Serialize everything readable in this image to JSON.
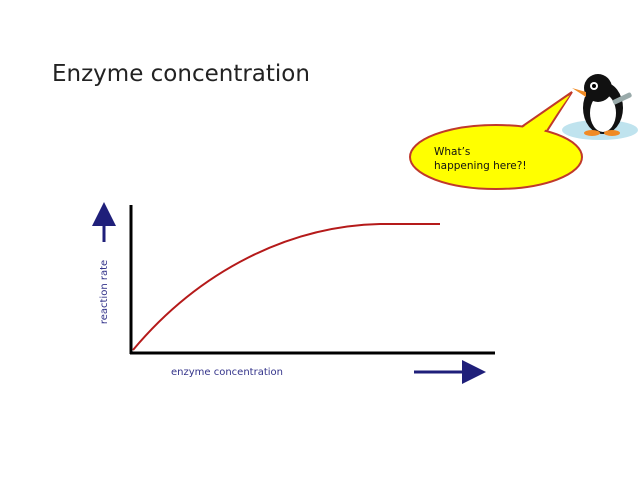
{
  "title": "Enzyme concentration",
  "graph": {
    "y_axis_label": "reaction rate",
    "x_axis_label": "enzyme concentration"
  },
  "speech_bubble": {
    "lines": [
      "What’s",
      "happening here?!"
    ]
  }
}
